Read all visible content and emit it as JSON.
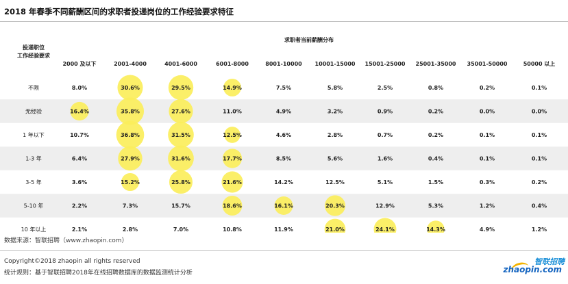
{
  "title": "2018 年春季不同薪酬区间的求职者投递岗位的工作经验要求特征",
  "source": "数据来源：智联招聘（www.zhaopin.com）",
  "footer": {
    "copyright": "Copyright©2018 zhaopin all rights reserved",
    "rule": "统计规则：基于智联招聘2018年在线招聘数据库的数据监测统计分析"
  },
  "logo": {
    "cn": "智联招聘",
    "en": "zhaopin.com"
  },
  "colors": {
    "bubble": "#fbee5b",
    "row_shade": "#eeeeee"
  },
  "chart_data": {
    "type": "heatmap",
    "title": "2018 年春季不同薪酬区间的求职者投递岗位的工作经验要求特征",
    "row_header": "投递职位\n工作经验要求",
    "column_group_header": "求职者当前薪酬分布",
    "columns": [
      "2000 及以下",
      "2001-4000",
      "4001-6000",
      "6001-8000",
      "8001-10000",
      "10001-15000",
      "15001-25000",
      "25001-35000",
      "35001-50000",
      "50000 以上"
    ],
    "rows": [
      "不限",
      "无经验",
      "1 年以下",
      "1-3 年",
      "3-5 年",
      "5-10 年",
      "10 年以上"
    ],
    "values": [
      [
        8.0,
        30.6,
        29.5,
        14.9,
        7.5,
        5.8,
        2.5,
        0.8,
        0.2,
        0.1
      ],
      [
        16.4,
        35.8,
        27.6,
        11.0,
        4.9,
        3.2,
        0.9,
        0.2,
        0.0,
        0.0
      ],
      [
        10.7,
        36.8,
        31.5,
        12.5,
        4.6,
        2.8,
        0.7,
        0.2,
        0.1,
        0.1
      ],
      [
        6.4,
        27.9,
        31.6,
        17.7,
        8.5,
        5.6,
        1.6,
        0.4,
        0.1,
        0.1
      ],
      [
        3.6,
        15.2,
        25.8,
        21.6,
        14.2,
        12.5,
        5.1,
        1.5,
        0.3,
        0.2
      ],
      [
        2.2,
        7.3,
        15.7,
        18.6,
        16.1,
        20.3,
        12.9,
        5.3,
        1.2,
        0.4
      ],
      [
        2.1,
        2.8,
        7.0,
        10.8,
        11.9,
        21.0,
        24.1,
        14.3,
        4.9,
        1.2
      ]
    ],
    "highlighted": [
      [
        false,
        true,
        true,
        true,
        false,
        false,
        false,
        false,
        false,
        false
      ],
      [
        true,
        true,
        true,
        false,
        false,
        false,
        false,
        false,
        false,
        false
      ],
      [
        false,
        true,
        true,
        true,
        false,
        false,
        false,
        false,
        false,
        false
      ],
      [
        false,
        true,
        true,
        true,
        false,
        false,
        false,
        false,
        false,
        false
      ],
      [
        false,
        true,
        true,
        true,
        false,
        false,
        false,
        false,
        false,
        false
      ],
      [
        false,
        false,
        false,
        true,
        true,
        true,
        false,
        false,
        false,
        false
      ],
      [
        false,
        false,
        false,
        false,
        false,
        true,
        true,
        true,
        false,
        false
      ]
    ],
    "value_suffix": "%"
  }
}
